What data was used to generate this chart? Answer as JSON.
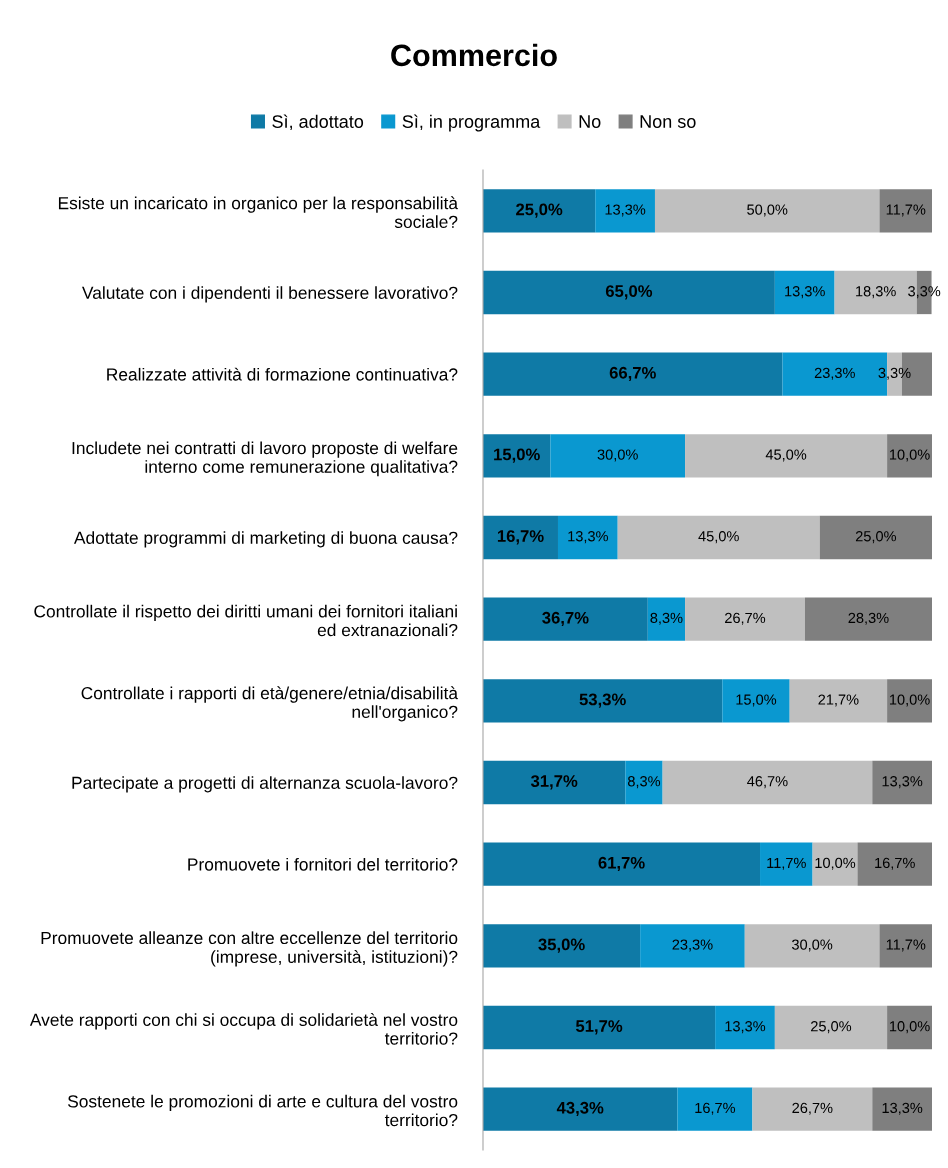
{
  "chart_data": {
    "type": "bar",
    "orientation": "horizontal",
    "stacked": true,
    "title": "Commercio",
    "legend": "top",
    "grid": false,
    "tick_labels": "y",
    "xlim": [
      0,
      100
    ],
    "categories": [
      "Esiste un incaricato in organico per la responsabilità\nsociale?",
      "Valutate con i dipendenti il benessere lavorativo?",
      "Realizzate attività di formazione continuativa?",
      "Includete nei contratti di lavoro proposte di welfare\ninterno come remunerazione qualitativa?",
      "Adottate programmi di marketing di buona causa?",
      "Controllate il rispetto dei diritti umani dei fornitori italiani\ned extranazionali?",
      "Controllate i rapporti di età/genere/etnia/disabilità\nnell'organico?",
      "Partecipate a progetti di alternanza scuola-lavoro?",
      "Promuovete i fornitori del territorio?",
      "Promuovete alleanze con altre eccellenze del territorio\n(imprese, università, istituzioni)?",
      "Avete rapporti con chi si occupa di solidarietà nel vostro\nterritorio?",
      "Sostenete le promozioni di arte e cultura del vostro\nterritorio?"
    ],
    "series": [
      {
        "name": "Sì, adottato",
        "color": "#0f7aa6",
        "values": [
          25.0,
          65.0,
          66.7,
          15.0,
          16.7,
          36.7,
          53.3,
          31.7,
          61.7,
          35.0,
          51.7,
          43.3
        ],
        "value_labels": [
          "25,0%",
          "65,0%",
          "66,7%",
          "15,0%",
          "16,7%",
          "36,7%",
          "53,3%",
          "31,7%",
          "61,7%",
          "35,0%",
          "51,7%",
          "43,3%"
        ]
      },
      {
        "name": "Sì, in programma",
        "color": "#0a98d0",
        "values": [
          13.3,
          13.3,
          23.3,
          30.0,
          13.3,
          8.3,
          15.0,
          8.3,
          11.7,
          23.3,
          13.3,
          16.7
        ],
        "value_labels": [
          "13,3%",
          "13,3%",
          "23,3%",
          "30,0%",
          "13,3%",
          "8,3%",
          "15,0%",
          "8,3%",
          "11,7%",
          "23,3%",
          "13,3%",
          "16,7%"
        ]
      },
      {
        "name": "No",
        "color": "#bfbfbf",
        "values": [
          50.0,
          18.3,
          3.3,
          45.0,
          45.0,
          26.7,
          21.7,
          46.7,
          10.0,
          30.0,
          25.0,
          26.7
        ],
        "value_labels": [
          "50,0%",
          "18,3%",
          "3,3%",
          "45,0%",
          "45,0%",
          "26,7%",
          "21,7%",
          "46,7%",
          "10,0%",
          "30,0%",
          "25,0%",
          "26,7%"
        ]
      },
      {
        "name": "Non so",
        "color": "#7f7f7f",
        "values": [
          11.7,
          3.3,
          6.7,
          10.0,
          25.0,
          28.3,
          10.0,
          13.3,
          16.7,
          11.7,
          10.0,
          13.3
        ],
        "value_labels": [
          "11,7%",
          "3,3%",
          null,
          "10,0%",
          "25,0%",
          "28,3%",
          "10,0%",
          "13,3%",
          "16,7%",
          "11,7%",
          "10,0%",
          "13,3%"
        ]
      }
    ]
  }
}
